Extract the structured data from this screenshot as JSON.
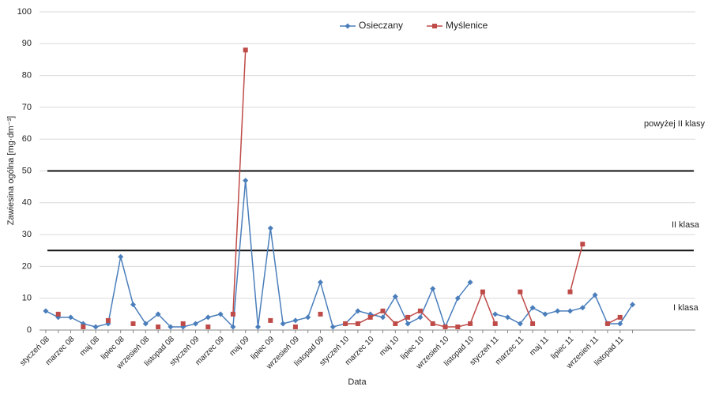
{
  "chart_data": {
    "type": "line",
    "x_label": "Data",
    "y_label": "Zawiesina ogólna [mg·dm⁻³]",
    "categories": [
      "styczeń 08",
      null,
      "marzec 08",
      null,
      "maj 08",
      null,
      "lipiec 08",
      null,
      "wrzesień 08",
      null,
      "listopad 08",
      null,
      "styczeń 09",
      null,
      "marzec 09",
      null,
      "maj 09",
      null,
      "lipiec 09",
      null,
      "wrzesień 09",
      null,
      "listopad 09",
      null,
      "styczeń 10",
      null,
      "marzec 10",
      null,
      "maj 10",
      null,
      "lipiec 10",
      null,
      "wrzesień 10",
      null,
      "listopad 10",
      null,
      "styczeń 11",
      null,
      "marzec 11",
      null,
      "maj 11",
      null,
      "lipiec 11",
      null,
      "wrzesień 11",
      null,
      "listopad 11",
      null
    ],
    "series": [
      {
        "name": "Osieczany",
        "color": "#4a7ebb",
        "values": [
          6,
          4,
          4,
          2,
          1,
          2,
          23,
          8,
          2,
          5,
          1,
          1,
          2,
          4,
          5,
          1,
          47,
          1,
          32,
          2,
          3,
          4,
          15,
          1,
          2,
          6,
          5,
          4,
          10.5,
          2,
          4,
          13,
          1,
          10,
          15,
          null,
          5,
          4,
          2,
          7,
          5,
          6,
          6,
          7,
          11,
          2,
          2,
          8
        ]
      },
      {
        "name": "Myślenice",
        "color": "#be4b48",
        "values": [
          null,
          5,
          null,
          1,
          null,
          3,
          null,
          2,
          null,
          1,
          null,
          2,
          null,
          1,
          null,
          5,
          88,
          null,
          3,
          null,
          1,
          null,
          5,
          null,
          2,
          2,
          4,
          6,
          2,
          4,
          6,
          2,
          1,
          1,
          2,
          12,
          2,
          null,
          12,
          2,
          null,
          null,
          12,
          27,
          null,
          2,
          4,
          null
        ]
      }
    ],
    "ylim": [
      0,
      100
    ],
    "yticks": [
      0,
      10,
      20,
      30,
      40,
      50,
      60,
      70,
      80,
      90,
      100
    ],
    "grid": true,
    "reference_lines": [
      50,
      25
    ],
    "annotations": [
      "powyżej II klasy",
      "II klasa",
      "I klasa"
    ],
    "legend": "top"
  }
}
